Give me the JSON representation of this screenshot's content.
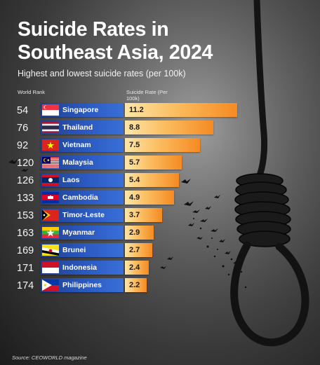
{
  "title": "Suicide Rates in Southeast Asia, 2024",
  "subtitle": "Highest and lowest suicide rates (per 100k)",
  "col_rank": "World Rank",
  "col_rate": "Suicide Rate (Per 100k)",
  "source": "Source: CEOWORLD magazine",
  "chart_data": {
    "type": "bar",
    "title": "Suicide Rates in Southeast Asia, 2024",
    "subtitle": "Highest and lowest suicide rates (per 100k)",
    "categories": [
      "Singapore",
      "Thailand",
      "Vietnam",
      "Malaysia",
      "Laos",
      "Cambodia",
      "Timor-Leste",
      "Myanmar",
      "Brunei",
      "Indonesia",
      "Philippines"
    ],
    "values": [
      11.2,
      8.8,
      7.5,
      5.7,
      5.4,
      4.9,
      3.7,
      2.9,
      2.7,
      2.4,
      2.2
    ],
    "world_rank": [
      54,
      76,
      92,
      120,
      126,
      133,
      153,
      163,
      169,
      171,
      174
    ],
    "labels": [
      "11.2",
      "8.8",
      "7.5",
      "5.7",
      "5.4",
      "4.9",
      "3.7",
      "2.9",
      "2.7",
      "2.4",
      "2.2"
    ],
    "rank_labels": [
      "54",
      "76",
      "92",
      "120",
      "126",
      "133",
      "153",
      "163",
      "169",
      "171",
      "174"
    ],
    "orientation": "horizontal",
    "colors": {
      "country_bar": "#2c5cc4",
      "rate_bar_start": "#fde6a8",
      "rate_bar_end": "#f58a22"
    }
  },
  "flags": [
    "singapore-flag-icon",
    "thailand-flag-icon",
    "vietnam-flag-icon",
    "malaysia-flag-icon",
    "laos-flag-icon",
    "cambodia-flag-icon",
    "timor-leste-flag-icon",
    "myanmar-flag-icon",
    "brunei-flag-icon",
    "indonesia-flag-icon",
    "philippines-flag-icon"
  ]
}
